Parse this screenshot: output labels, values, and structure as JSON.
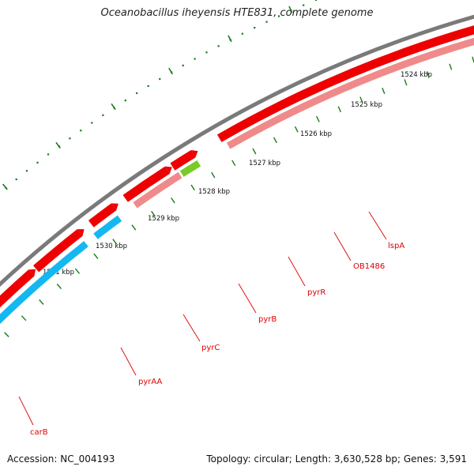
{
  "title": "Oceanobacillus iheyensis HTE831, complete genome",
  "footer": {
    "accession": "Accession: NC_004193",
    "summary": "Topology: circular; Length: 3,630,528 bp; Genes: 3,591"
  },
  "colors": {
    "backbone": "#7a7a7a",
    "cds_forward": "#ee0000",
    "cds_forward_light": "#f08a8a",
    "cds_reverse": "#14b8f0",
    "cds_blue_dark": "#4a78b8",
    "green": "#7acb28",
    "tick_dot": "#1a7a1a",
    "label": "#e00000"
  },
  "scale": {
    "unit": "kbp",
    "labels": [
      "1524 kbp",
      "1525 kbp",
      "1526 kbp",
      "1527 kbp",
      "1528 kbp",
      "1529 kbp",
      "1530 kbp",
      "1531 kbp"
    ]
  },
  "genes": [
    {
      "name": "carB",
      "track": "reverse"
    },
    {
      "name": "pyrAA",
      "track": "reverse"
    },
    {
      "name": "pyrC",
      "track": "reverse"
    },
    {
      "name": "pyrB",
      "track": "reverse"
    },
    {
      "name": "pyrR",
      "track": "reverse"
    },
    {
      "name": "OB1486",
      "track": "forward-light"
    },
    {
      "name": "lspA",
      "track": "green"
    }
  ]
}
